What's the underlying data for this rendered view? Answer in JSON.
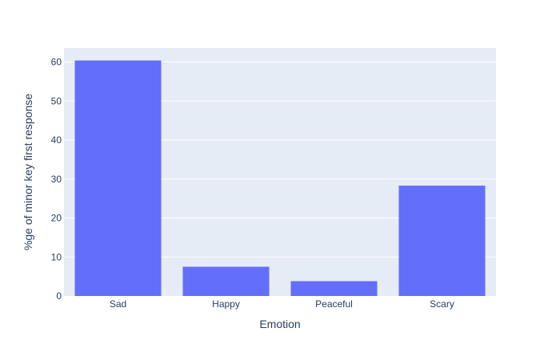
{
  "chart_data": {
    "type": "bar",
    "title": "",
    "xlabel": "Emotion",
    "ylabel": "%ge of minor key first response",
    "categories": [
      "Sad",
      "Happy",
      "Peaceful",
      "Scary"
    ],
    "values": [
      60.4,
      7.5,
      3.8,
      28.3
    ],
    "ylim": [
      0,
      63.6
    ],
    "yticks": [
      0,
      10,
      20,
      30,
      40,
      50,
      60
    ],
    "grid": true,
    "legend": "none",
    "colors": {
      "bar": "#636efa",
      "plot_background": "#e5ecf6",
      "grid": "#ffffff",
      "text": "#2a3f5f"
    }
  }
}
